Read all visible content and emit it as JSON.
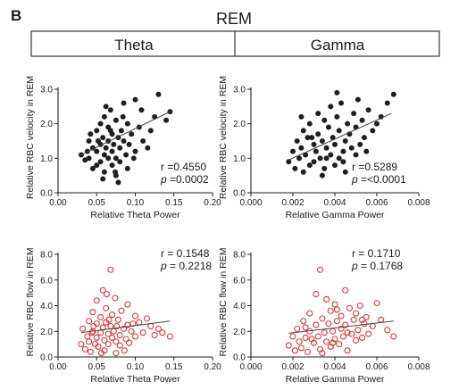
{
  "figure": {
    "panel_letter": "B",
    "condition_title": "REM",
    "column_headers": [
      "Theta",
      "Gamma"
    ]
  },
  "colors": {
    "dark_series": "#1f1f1f",
    "red_series": "#d83a3a",
    "fit_line": "#444444"
  },
  "chart_data": [
    {
      "type": "scatter",
      "xlabel": "Relative Theta Power",
      "ylabel": "Relative RBC velocity in REM",
      "xlim": [
        0,
        0.2
      ],
      "ylim": [
        0,
        3.0
      ],
      "xticks": [
        "0.00",
        "0.05",
        "0.10",
        "0.15",
        "0.20"
      ],
      "yticks": [
        "0.0",
        "1.0",
        "2.0",
        "3.0"
      ],
      "xtick_values": [
        0,
        0.05,
        0.1,
        0.15,
        0.2
      ],
      "ytick_values": [
        0,
        1,
        2,
        3
      ],
      "r_text": "r =0.4550",
      "p_label": "p",
      "p_text": " =0.0002",
      "marker": "filled",
      "color": "#1f1f1f",
      "fit": [
        [
          0.03,
          1.1
        ],
        [
          0.145,
          2.35
        ]
      ],
      "points": [
        [
          0.03,
          1.1
        ],
        [
          0.035,
          0.95
        ],
        [
          0.04,
          1.5
        ],
        [
          0.04,
          1.0
        ],
        [
          0.045,
          1.3
        ],
        [
          0.045,
          0.7
        ],
        [
          0.05,
          1.8
        ],
        [
          0.05,
          1.2
        ],
        [
          0.05,
          0.8
        ],
        [
          0.055,
          2.0
        ],
        [
          0.055,
          1.4
        ],
        [
          0.055,
          0.9
        ],
        [
          0.058,
          1.6
        ],
        [
          0.06,
          2.2
        ],
        [
          0.06,
          1.1
        ],
        [
          0.06,
          0.6
        ],
        [
          0.062,
          1.3
        ],
        [
          0.065,
          1.9
        ],
        [
          0.065,
          1.5
        ],
        [
          0.065,
          1.0
        ],
        [
          0.068,
          2.4
        ],
        [
          0.07,
          1.7
        ],
        [
          0.07,
          1.2
        ],
        [
          0.07,
          0.8
        ],
        [
          0.072,
          1.4
        ],
        [
          0.075,
          2.1
        ],
        [
          0.075,
          1.0
        ],
        [
          0.075,
          0.5
        ],
        [
          0.078,
          1.6
        ],
        [
          0.08,
          1.3
        ],
        [
          0.08,
          0.9
        ],
        [
          0.082,
          1.8
        ],
        [
          0.085,
          2.6
        ],
        [
          0.085,
          1.5
        ],
        [
          0.088,
          1.1
        ],
        [
          0.09,
          2.0
        ],
        [
          0.09,
          0.7
        ],
        [
          0.092,
          1.4
        ],
        [
          0.095,
          1.7
        ],
        [
          0.1,
          2.7
        ],
        [
          0.1,
          1.2
        ],
        [
          0.105,
          1.9
        ],
        [
          0.11,
          1.5
        ],
        [
          0.12,
          1.8
        ],
        [
          0.125,
          2.2
        ],
        [
          0.13,
          2.85
        ],
        [
          0.14,
          2.1
        ],
        [
          0.145,
          2.35
        ],
        [
          0.042,
          1.7
        ],
        [
          0.058,
          0.4
        ],
        [
          0.068,
          1.8
        ],
        [
          0.074,
          0.6
        ],
        [
          0.084,
          2.2
        ],
        [
          0.098,
          1.0
        ],
        [
          0.108,
          2.4
        ],
        [
          0.116,
          1.3
        ],
        [
          0.038,
          1.2
        ],
        [
          0.062,
          2.5
        ],
        [
          0.078,
          0.3
        ],
        [
          0.052,
          1.5
        ]
      ]
    },
    {
      "type": "scatter",
      "xlabel": "Relative Gamma Power",
      "ylabel": "Relative RBC velocity in REM",
      "xlim": [
        0,
        0.008
      ],
      "ylim": [
        0,
        3.0
      ],
      "xticks": [
        "0.000",
        "0.002",
        "0.004",
        "0.006",
        "0.008"
      ],
      "yticks": [
        "0.0",
        "1.0",
        "2.0",
        "3.0"
      ],
      "xtick_values": [
        0,
        0.002,
        0.004,
        0.006,
        0.008
      ],
      "ytick_values": [
        0,
        1,
        2,
        3
      ],
      "r_text": "r =0.5289",
      "p_label": "p",
      "p_text": " =<0.0001",
      "marker": "filled",
      "color": "#1f1f1f",
      "fit": [
        [
          0.0018,
          0.95
        ],
        [
          0.0067,
          2.3
        ]
      ],
      "points": [
        [
          0.0018,
          0.9
        ],
        [
          0.002,
          1.2
        ],
        [
          0.0021,
          0.7
        ],
        [
          0.0022,
          1.5
        ],
        [
          0.0023,
          1.0
        ],
        [
          0.0024,
          1.3
        ],
        [
          0.0025,
          0.6
        ],
        [
          0.0025,
          1.8
        ],
        [
          0.0026,
          1.1
        ],
        [
          0.0027,
          1.6
        ],
        [
          0.0028,
          0.8
        ],
        [
          0.0028,
          2.0
        ],
        [
          0.003,
          1.4
        ],
        [
          0.003,
          0.9
        ],
        [
          0.0031,
          1.2
        ],
        [
          0.0032,
          1.7
        ],
        [
          0.0032,
          2.3
        ],
        [
          0.0033,
          1.0
        ],
        [
          0.0034,
          1.5
        ],
        [
          0.0035,
          0.7
        ],
        [
          0.0035,
          2.1
        ],
        [
          0.0036,
          1.3
        ],
        [
          0.0037,
          1.9
        ],
        [
          0.0038,
          1.1
        ],
        [
          0.0038,
          2.5
        ],
        [
          0.0039,
          1.6
        ],
        [
          0.004,
          0.8
        ],
        [
          0.004,
          1.4
        ],
        [
          0.0041,
          2.2
        ],
        [
          0.0042,
          1.0
        ],
        [
          0.0042,
          1.8
        ],
        [
          0.0043,
          2.6
        ],
        [
          0.0044,
          1.2
        ],
        [
          0.0045,
          1.5
        ],
        [
          0.0045,
          0.6
        ],
        [
          0.0046,
          2.0
        ],
        [
          0.0047,
          1.7
        ],
        [
          0.0048,
          1.3
        ],
        [
          0.0049,
          2.3
        ],
        [
          0.005,
          1.1
        ],
        [
          0.005,
          1.9
        ],
        [
          0.0051,
          2.7
        ],
        [
          0.0052,
          1.4
        ],
        [
          0.0053,
          2.1
        ],
        [
          0.0054,
          1.6
        ],
        [
          0.0056,
          2.4
        ],
        [
          0.0058,
          1.8
        ],
        [
          0.006,
          2.0
        ],
        [
          0.0062,
          2.2
        ],
        [
          0.0065,
          2.6
        ],
        [
          0.0068,
          2.85
        ],
        [
          0.0029,
          1.6
        ],
        [
          0.0034,
          0.5
        ],
        [
          0.0044,
          0.9
        ],
        [
          0.0041,
          2.9
        ],
        [
          0.0024,
          2.2
        ],
        [
          0.0055,
          1.2
        ],
        [
          0.0036,
          1.0
        ]
      ]
    },
    {
      "type": "scatter",
      "xlabel": "Relative Theta Power",
      "ylabel": "Relative RBC flow in REM",
      "xlim": [
        0,
        0.2
      ],
      "ylim": [
        0,
        8.0
      ],
      "xticks": [
        "0.00",
        "0.05",
        "0.10",
        "0.15",
        "0.20"
      ],
      "yticks": [
        "0.0",
        "2.0",
        "4.0",
        "6.0",
        "8.0"
      ],
      "xtick_values": [
        0,
        0.05,
        0.1,
        0.15,
        0.2
      ],
      "ytick_values": [
        0,
        2,
        4,
        6,
        8
      ],
      "r_text": "r = 0.1548",
      "p_label": "p",
      "p_text": " = 0.2218",
      "marker": "open",
      "color": "#d83a3a",
      "fit": [
        [
          0.03,
          1.9
        ],
        [
          0.145,
          2.8
        ]
      ],
      "points": [
        [
          0.03,
          1.0
        ],
        [
          0.032,
          2.2
        ],
        [
          0.035,
          0.6
        ],
        [
          0.038,
          1.6
        ],
        [
          0.04,
          2.8
        ],
        [
          0.04,
          1.2
        ],
        [
          0.042,
          0.4
        ],
        [
          0.045,
          3.5
        ],
        [
          0.045,
          2.0
        ],
        [
          0.048,
          1.0
        ],
        [
          0.05,
          4.4
        ],
        [
          0.05,
          2.6
        ],
        [
          0.05,
          1.5
        ],
        [
          0.052,
          0.8
        ],
        [
          0.055,
          3.1
        ],
        [
          0.055,
          1.9
        ],
        [
          0.058,
          5.2
        ],
        [
          0.058,
          2.3
        ],
        [
          0.06,
          1.3
        ],
        [
          0.06,
          0.5
        ],
        [
          0.062,
          3.8
        ],
        [
          0.062,
          2.7
        ],
        [
          0.065,
          1.8
        ],
        [
          0.065,
          1.0
        ],
        [
          0.068,
          6.8
        ],
        [
          0.068,
          2.4
        ],
        [
          0.07,
          3.3
        ],
        [
          0.07,
          1.5
        ],
        [
          0.072,
          2.0
        ],
        [
          0.074,
          4.6
        ],
        [
          0.075,
          1.2
        ],
        [
          0.075,
          0.3
        ],
        [
          0.078,
          2.9
        ],
        [
          0.08,
          1.7
        ],
        [
          0.08,
          0.9
        ],
        [
          0.082,
          3.6
        ],
        [
          0.085,
          2.2
        ],
        [
          0.088,
          1.4
        ],
        [
          0.09,
          4.1
        ],
        [
          0.09,
          2.5
        ],
        [
          0.092,
          1.1
        ],
        [
          0.095,
          2.0
        ],
        [
          0.1,
          3.2
        ],
        [
          0.1,
          1.6
        ],
        [
          0.105,
          2.7
        ],
        [
          0.11,
          1.9
        ],
        [
          0.115,
          3.0
        ],
        [
          0.12,
          2.4
        ],
        [
          0.125,
          1.7
        ],
        [
          0.13,
          2.2
        ],
        [
          0.135,
          1.9
        ],
        [
          0.145,
          1.6
        ],
        [
          0.044,
          1.9
        ],
        [
          0.056,
          0.3
        ],
        [
          0.066,
          2.9
        ],
        [
          0.076,
          2.4
        ],
        [
          0.086,
          0.5
        ],
        [
          0.063,
          4.9
        ],
        [
          0.097,
          2.6
        ],
        [
          0.046,
          2.4
        ]
      ]
    },
    {
      "type": "scatter",
      "xlabel": "Relative Gamma Power",
      "ylabel": "Relative RBC flow in REM",
      "xlim": [
        0,
        0.008
      ],
      "ylim": [
        0,
        8.0
      ],
      "xticks": [
        "0.000",
        "0.002",
        "0.004",
        "0.006",
        "0.008"
      ],
      "yticks": [
        "0.0",
        "2.0",
        "4.0",
        "6.0",
        "8.0"
      ],
      "xtick_values": [
        0,
        0.002,
        0.004,
        0.006,
        0.008
      ],
      "ytick_values": [
        0,
        2,
        4,
        6,
        8
      ],
      "r_text": "r = 0.1710",
      "p_label": "p",
      "p_text": " = 0.1768",
      "marker": "open",
      "color": "#d83a3a",
      "fit": [
        [
          0.0018,
          1.85
        ],
        [
          0.0068,
          2.8
        ]
      ],
      "points": [
        [
          0.0018,
          0.9
        ],
        [
          0.002,
          1.6
        ],
        [
          0.0021,
          0.5
        ],
        [
          0.0022,
          2.2
        ],
        [
          0.0023,
          1.2
        ],
        [
          0.0024,
          0.7
        ],
        [
          0.0025,
          2.8
        ],
        [
          0.0026,
          1.5
        ],
        [
          0.0027,
          0.4
        ],
        [
          0.0028,
          3.4
        ],
        [
          0.0028,
          2.0
        ],
        [
          0.003,
          1.1
        ],
        [
          0.0031,
          4.9
        ],
        [
          0.0031,
          2.5
        ],
        [
          0.0032,
          1.6
        ],
        [
          0.0033,
          0.6
        ],
        [
          0.0033,
          6.8
        ],
        [
          0.0034,
          3.0
        ],
        [
          0.0035,
          1.9
        ],
        [
          0.0036,
          4.5
        ],
        [
          0.0036,
          1.2
        ],
        [
          0.0037,
          2.6
        ],
        [
          0.0038,
          0.8
        ],
        [
          0.0038,
          3.6
        ],
        [
          0.0039,
          2.0
        ],
        [
          0.004,
          1.4
        ],
        [
          0.004,
          4.1
        ],
        [
          0.0041,
          2.8
        ],
        [
          0.0042,
          1.0
        ],
        [
          0.0043,
          3.2
        ],
        [
          0.0043,
          2.2
        ],
        [
          0.0044,
          1.6
        ],
        [
          0.0045,
          5.2
        ],
        [
          0.0045,
          2.5
        ],
        [
          0.0046,
          0.5
        ],
        [
          0.0047,
          3.8
        ],
        [
          0.0048,
          1.8
        ],
        [
          0.0049,
          2.9
        ],
        [
          0.005,
          1.3
        ],
        [
          0.005,
          3.4
        ],
        [
          0.0051,
          2.1
        ],
        [
          0.0052,
          4.0
        ],
        [
          0.0053,
          1.5
        ],
        [
          0.0054,
          2.6
        ],
        [
          0.0055,
          3.1
        ],
        [
          0.0056,
          1.8
        ],
        [
          0.0058,
          2.4
        ],
        [
          0.006,
          4.2
        ],
        [
          0.0062,
          2.9
        ],
        [
          0.0065,
          2.1
        ],
        [
          0.0068,
          1.6
        ],
        [
          0.0029,
          1.4
        ],
        [
          0.0034,
          0.3
        ],
        [
          0.0041,
          3.7
        ],
        [
          0.0046,
          1.9
        ],
        [
          0.0053,
          2.9
        ],
        [
          0.0026,
          2.3
        ],
        [
          0.0039,
          1.1
        ]
      ]
    }
  ]
}
